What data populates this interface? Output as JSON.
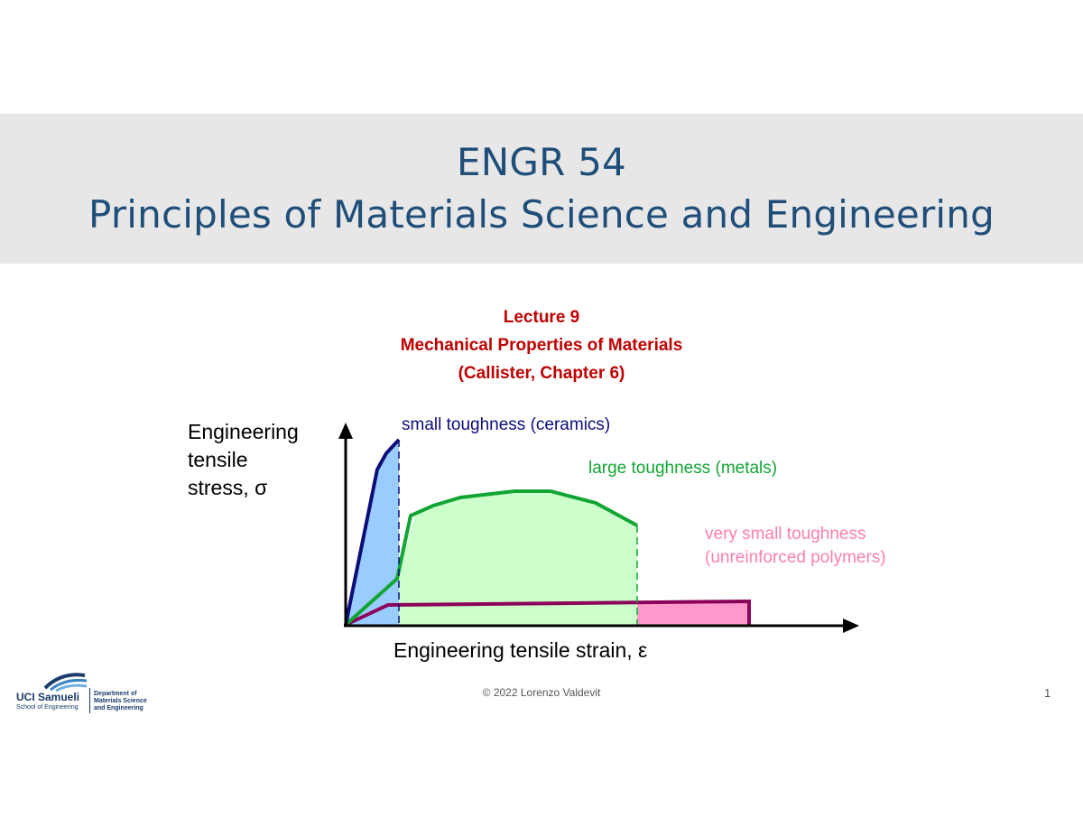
{
  "header": {
    "course": "ENGR 54",
    "course_title": "Principles of Materials Science and Engineering"
  },
  "lecture": {
    "number": "Lecture 9",
    "topic": "Mechanical Properties of Materials",
    "reference": "(Callister, Chapter 6)"
  },
  "figure": {
    "y_label_lines": [
      "Engineering",
      "tensile",
      "stress, σ"
    ],
    "x_label": "Engineering tensile strain, ε",
    "curves": [
      {
        "name": "ceramics",
        "label": "small toughness (ceramics)",
        "line_color": "#0d0d7a",
        "fill_color": "#99ccff",
        "label_color": "#0d0d7a"
      },
      {
        "name": "metals",
        "label": "large toughness (metals)",
        "line_color": "#12a534",
        "fill_color": "#ccffcc",
        "label_color": "#12a534"
      },
      {
        "name": "polymers",
        "label_lines": [
          "very small toughness",
          "(unreinforced polymers)"
        ],
        "line_color": "#8b005b",
        "fill_color": "#ff99cc",
        "label_color": "#ff7fb0"
      }
    ]
  },
  "footer": {
    "copyright": "© 2022 Lorenzo Valdevit",
    "page_number": "1"
  },
  "logo": {
    "org": "UCI Samueli",
    "school": "School of Engineering",
    "dept_lines": [
      "Department of",
      "Materials Science",
      "and Engineering"
    ]
  }
}
